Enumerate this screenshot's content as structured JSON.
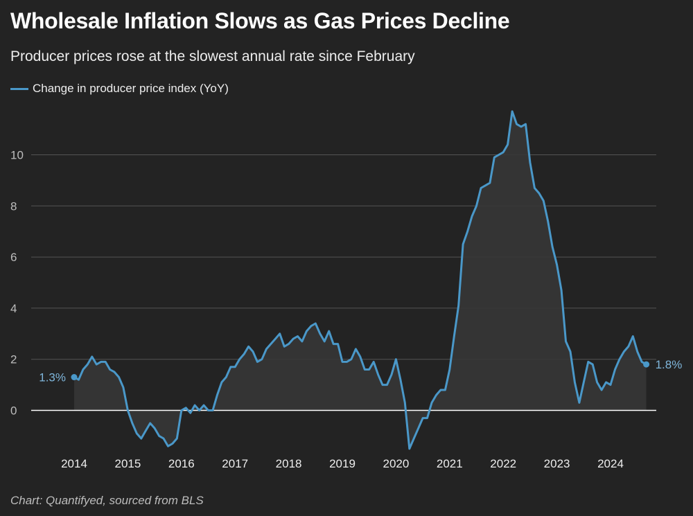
{
  "header": {
    "title": "Wholesale Inflation Slows as Gas Prices Decline",
    "subtitle": "Producer prices rose at the slowest annual rate since February"
  },
  "footer": {
    "source": "Chart: Quantifyed, sourced from BLS"
  },
  "colors": {
    "background": "#232323",
    "line": "#4a98c9",
    "area": "#363636",
    "grid": "#555555",
    "zero_line": "#ffffff",
    "end_label": "#7fb6db"
  },
  "chart_data": {
    "type": "line",
    "title": "Wholesale Inflation Slows as Gas Prices Decline",
    "subtitle": "Producer prices rose at the slowest annual rate since February",
    "xlabel": "",
    "ylabel": "",
    "x_ticks": [
      "2014",
      "2015",
      "2016",
      "2017",
      "2018",
      "2019",
      "2020",
      "2021",
      "2022",
      "2023",
      "2024"
    ],
    "y_ticks": [
      "0",
      "2",
      "4",
      "6",
      "8",
      "10"
    ],
    "ylim": [
      -1.6,
      11.8
    ],
    "grid": true,
    "legend": "top-left",
    "start_label": "1.3%",
    "end_label": "1.8%",
    "series": [
      {
        "name": "Change in producer price index (YoY)",
        "x": [
          "2014-01",
          "2014-02",
          "2014-03",
          "2014-04",
          "2014-05",
          "2014-06",
          "2014-07",
          "2014-08",
          "2014-09",
          "2014-10",
          "2014-11",
          "2014-12",
          "2015-01",
          "2015-02",
          "2015-03",
          "2015-04",
          "2015-05",
          "2015-06",
          "2015-07",
          "2015-08",
          "2015-09",
          "2015-10",
          "2015-11",
          "2015-12",
          "2016-01",
          "2016-02",
          "2016-03",
          "2016-04",
          "2016-05",
          "2016-06",
          "2016-07",
          "2016-08",
          "2016-09",
          "2016-10",
          "2016-11",
          "2016-12",
          "2017-01",
          "2017-02",
          "2017-03",
          "2017-04",
          "2017-05",
          "2017-06",
          "2017-07",
          "2017-08",
          "2017-09",
          "2017-10",
          "2017-11",
          "2017-12",
          "2018-01",
          "2018-02",
          "2018-03",
          "2018-04",
          "2018-05",
          "2018-06",
          "2018-07",
          "2018-08",
          "2018-09",
          "2018-10",
          "2018-11",
          "2018-12",
          "2019-01",
          "2019-02",
          "2019-03",
          "2019-04",
          "2019-05",
          "2019-06",
          "2019-07",
          "2019-08",
          "2019-09",
          "2019-10",
          "2019-11",
          "2019-12",
          "2020-01",
          "2020-02",
          "2020-03",
          "2020-04",
          "2020-05",
          "2020-06",
          "2020-07",
          "2020-08",
          "2020-09",
          "2020-10",
          "2020-11",
          "2020-12",
          "2021-01",
          "2021-02",
          "2021-03",
          "2021-04",
          "2021-05",
          "2021-06",
          "2021-07",
          "2021-08",
          "2021-09",
          "2021-10",
          "2021-11",
          "2021-12",
          "2022-01",
          "2022-02",
          "2022-03",
          "2022-04",
          "2022-05",
          "2022-06",
          "2022-07",
          "2022-08",
          "2022-09",
          "2022-10",
          "2022-11",
          "2022-12",
          "2023-01",
          "2023-02",
          "2023-03",
          "2023-04",
          "2023-05",
          "2023-06",
          "2023-07",
          "2023-08",
          "2023-09",
          "2023-10",
          "2023-11",
          "2023-12",
          "2024-01",
          "2024-02",
          "2024-03",
          "2024-04",
          "2024-05",
          "2024-06",
          "2024-07",
          "2024-08",
          "2024-09"
        ],
        "values": [
          1.3,
          1.2,
          1.6,
          1.8,
          2.1,
          1.8,
          1.9,
          1.9,
          1.6,
          1.5,
          1.3,
          0.9,
          0.0,
          -0.5,
          -0.9,
          -1.1,
          -0.8,
          -0.5,
          -0.7,
          -1.0,
          -1.1,
          -1.4,
          -1.3,
          -1.1,
          0.0,
          0.1,
          -0.1,
          0.2,
          0.0,
          0.2,
          0.0,
          0.0,
          0.6,
          1.1,
          1.3,
          1.7,
          1.7,
          2.0,
          2.2,
          2.5,
          2.3,
          1.9,
          2.0,
          2.4,
          2.6,
          2.8,
          3.0,
          2.5,
          2.6,
          2.8,
          2.9,
          2.7,
          3.1,
          3.3,
          3.4,
          3.0,
          2.7,
          3.1,
          2.6,
          2.6,
          1.9,
          1.9,
          2.0,
          2.4,
          2.1,
          1.6,
          1.6,
          1.9,
          1.4,
          1.0,
          1.0,
          1.4,
          2.0,
          1.2,
          0.3,
          -1.5,
          -1.1,
          -0.7,
          -0.3,
          -0.3,
          0.3,
          0.6,
          0.8,
          0.8,
          1.6,
          2.9,
          4.1,
          6.5,
          7.0,
          7.6,
          8.0,
          8.7,
          8.8,
          8.9,
          9.9,
          10.0,
          10.1,
          10.4,
          11.7,
          11.2,
          11.1,
          11.2,
          9.7,
          8.7,
          8.5,
          8.2,
          7.4,
          6.4,
          5.7,
          4.7,
          2.7,
          2.3,
          1.1,
          0.3,
          1.1,
          1.9,
          1.8,
          1.1,
          0.8,
          1.1,
          1.0,
          1.6,
          2.0,
          2.3,
          2.5,
          2.9,
          2.3,
          1.9,
          1.8
        ]
      }
    ]
  }
}
